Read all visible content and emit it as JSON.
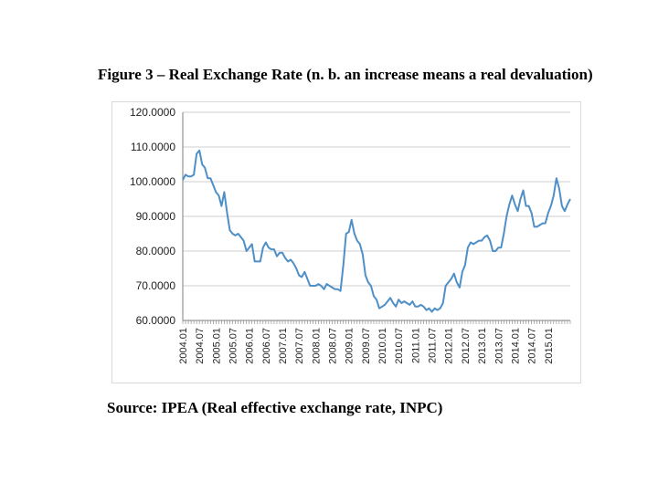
{
  "figure": {
    "title": "Figure 3 – Real Exchange Rate (n. b. an increase means a real devaluation)",
    "source": "Source: IPEA (Real effective exchange rate, INPC)"
  },
  "colors": {
    "line": "#4f8fc7",
    "grid": "#cfcfcf",
    "axis": "#808080"
  },
  "chart_data": {
    "type": "line",
    "title": "Figure 3 – Real Exchange Rate (n. b. an increase means a real devaluation)",
    "xlabel": "",
    "ylabel": "",
    "ylim": [
      60,
      120
    ],
    "grid": true,
    "legend": "none",
    "ytick_values": [
      60,
      70,
      80,
      90,
      100,
      110,
      120
    ],
    "ytick_labels": [
      "60.0000",
      "70.0000",
      "80.0000",
      "90.0000",
      "100.0000",
      "110.0000",
      "120.0000"
    ],
    "xtick_labels": [
      "2004.01",
      "2004.07",
      "2005.01",
      "2005.07",
      "2006.01",
      "2006.07",
      "2007.01",
      "2007.07",
      "2008.01",
      "2008.07",
      "2009.01",
      "2009.07",
      "2010.01",
      "2010.07",
      "2011.01",
      "2011.07",
      "2012.01",
      "2012.07",
      "2013.01",
      "2013.07",
      "2014.01",
      "2014.07",
      "2015.01"
    ],
    "series": [
      {
        "name": "Real effective exchange rate (INPC)",
        "start": "2004.01",
        "frequency": "monthly",
        "values": [
          100.5,
          102,
          101.5,
          101.5,
          102,
          108,
          109,
          105,
          104,
          101,
          101,
          99,
          97,
          96,
          93,
          97,
          91,
          86,
          85,
          84.5,
          85,
          84,
          83,
          80,
          81,
          82,
          77,
          77,
          77,
          81,
          82.5,
          81,
          80.5,
          80.5,
          78.5,
          79.5,
          79.5,
          78,
          77,
          77.5,
          76.5,
          75,
          73,
          72.5,
          74,
          72,
          70,
          70,
          70,
          70.5,
          70,
          69,
          70.5,
          70,
          69.5,
          69,
          69,
          68.5,
          76,
          85,
          85.5,
          89,
          85,
          83,
          82,
          79,
          73,
          71,
          70,
          67,
          66,
          63.5,
          64,
          64.5,
          65.5,
          66.5,
          65,
          64,
          66,
          65,
          65.5,
          65,
          64.5,
          65.5,
          64,
          64,
          64.5,
          64,
          63,
          63.5,
          62.5,
          63.5,
          63,
          63.5,
          65,
          70,
          71,
          72,
          73.5,
          71,
          69.5,
          74,
          76,
          81,
          82.5,
          82,
          82.5,
          83,
          83,
          84,
          84.5,
          83,
          80,
          80,
          81,
          81,
          85,
          90,
          93.5,
          96,
          93.5,
          91.5,
          95,
          97.5,
          93,
          93,
          91,
          87,
          87,
          87.5,
          88,
          88,
          91,
          93,
          96,
          101,
          98,
          93,
          91.5,
          93.5,
          95
        ]
      }
    ]
  }
}
